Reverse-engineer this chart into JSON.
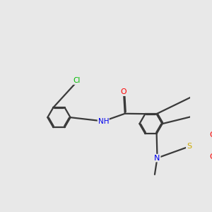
{
  "bg_color": "#e8e8e8",
  "bond_color": "#3a3a3a",
  "bond_width": 1.6,
  "atom_colors": {
    "N": "#0000ee",
    "O": "#ff0000",
    "S": "#ccaa00",
    "Cl": "#00bb00",
    "C": "#3a3a3a",
    "H": "#3a3a3a"
  },
  "figsize": [
    3.0,
    3.0
  ],
  "dpi": 100
}
